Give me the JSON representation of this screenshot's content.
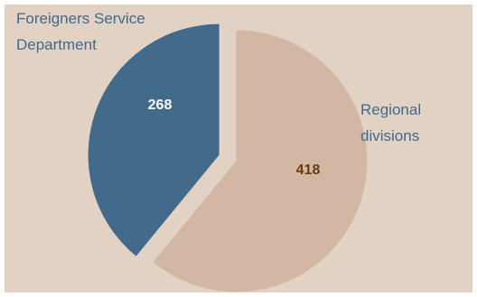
{
  "colors": {
    "background": "#e2d2c4",
    "frame": "#ffffff",
    "foreigners_fill": "#426b8b",
    "regional_fill": "#d2b8a4",
    "label_text": "#3f6a8c",
    "foreigners_value_text": "#ffffff",
    "regional_value_text": "#6b3a0c"
  },
  "chart_data": {
    "type": "pie",
    "title": "",
    "slices": [
      {
        "name": "Foreigners Service Department",
        "label_lines": [
          "Foreigners Service",
          "Department"
        ],
        "value": 268
      },
      {
        "name": "Regional divisions",
        "label_lines": [
          "Regional",
          "divisions"
        ],
        "value": 418
      }
    ],
    "start_angle_deg": 0,
    "direction": "counterclockwise",
    "exploded": true,
    "legend": "none",
    "value_labels": [
      "268",
      "418"
    ]
  }
}
